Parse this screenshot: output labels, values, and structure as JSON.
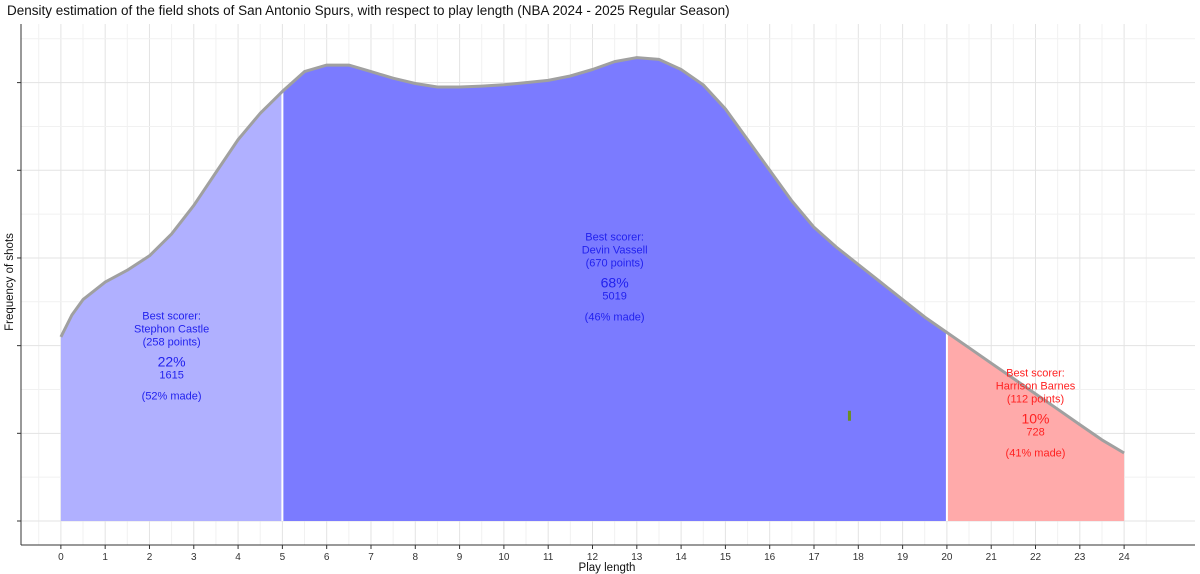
{
  "chart_data": {
    "type": "area",
    "title": "Density estimation of the field shots of San Antonio Spurs, with respect to play length (NBA 2024 - 2025 Regular Season)",
    "xlabel": "Play length",
    "ylabel": "Frequency of shots",
    "xlim": [
      -0.9,
      25.6
    ],
    "x_ticks": [
      0,
      1,
      2,
      3,
      4,
      5,
      6,
      7,
      8,
      9,
      10,
      11,
      12,
      13,
      14,
      15,
      16,
      17,
      18,
      19,
      20,
      21,
      22,
      23,
      24
    ],
    "grid": true,
    "density_curve": {
      "x": [
        0,
        0.25,
        0.5,
        1,
        1.5,
        2,
        2.5,
        3,
        3.5,
        4,
        4.5,
        5,
        5.5,
        6,
        6.5,
        7,
        7.5,
        8,
        8.5,
        9,
        9.5,
        10,
        10.5,
        11,
        11.5,
        12,
        12.5,
        13,
        13.5,
        14,
        14.5,
        15,
        15.5,
        16,
        16.5,
        17,
        17.5,
        18,
        18.5,
        19,
        19.5,
        20,
        20.5,
        21,
        21.5,
        22,
        22.5,
        23,
        23.5,
        24
      ],
      "y": [
        0.42,
        0.47,
        0.505,
        0.545,
        0.572,
        0.605,
        0.655,
        0.72,
        0.795,
        0.87,
        0.93,
        0.98,
        1.025,
        1.04,
        1.04,
        1.025,
        1.01,
        0.998,
        0.99,
        0.99,
        0.992,
        0.995,
        1.0,
        1.005,
        1.015,
        1.03,
        1.048,
        1.057,
        1.053,
        1.03,
        0.995,
        0.94,
        0.87,
        0.8,
        0.73,
        0.67,
        0.625,
        0.585,
        0.545,
        0.505,
        0.465,
        0.43,
        0.395,
        0.36,
        0.325,
        0.29,
        0.255,
        0.22,
        0.185,
        0.155
      ],
      "ylim": [
        0,
        1.12
      ]
    },
    "regions": [
      {
        "from": 0,
        "to": 5,
        "color": "#B0B0FF",
        "text_color": "#2222EE",
        "label_line1": "Best scorer:",
        "label_line2": "Stephon Castle",
        "label_line3": "(258 points)",
        "percent": "22%",
        "count": "1615",
        "made": "(52% made)",
        "label_x": 2.5,
        "label_y": 0.46
      },
      {
        "from": 5,
        "to": 20,
        "color": "#7B7BFF",
        "text_color": "#2222EE",
        "label_line1": "Best scorer:",
        "label_line2": "Devin Vassell",
        "label_line3": "(670 points)",
        "percent": "68%",
        "count": "5019",
        "made": "(46% made)",
        "label_x": 12.5,
        "label_y": 0.64
      },
      {
        "from": 20,
        "to": 24,
        "color": "#FFAAAA",
        "text_color": "#FF2222",
        "label_line1": "Best scorer:",
        "label_line2": "Harrison Barnes",
        "label_line3": "(112 points)",
        "percent": "10%",
        "count": "728",
        "made": "(41% made)",
        "label_x": 22,
        "label_y": 0.33
      }
    ],
    "marker": {
      "x": 17.8,
      "y": 0.24,
      "color": "#6B8E23"
    },
    "outline_color": "#A0A0A0",
    "divider_color": "#FFFFFF"
  }
}
